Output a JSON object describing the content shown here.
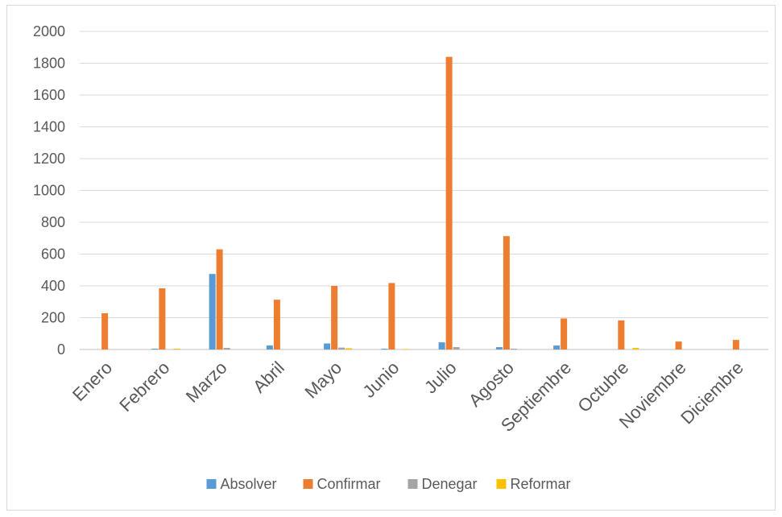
{
  "chart_data": {
    "type": "bar",
    "title": "",
    "xlabel": "",
    "ylabel": "",
    "ylim": [
      0,
      2000
    ],
    "yticks": [
      0,
      200,
      400,
      600,
      800,
      1000,
      1200,
      1400,
      1600,
      1800,
      2000
    ],
    "categories": [
      "Enero",
      "Febrero",
      "Marzo",
      "Abril",
      "Mayo",
      "Junio",
      "Julio",
      "Agosto",
      "Septiembre",
      "Octubre",
      "Noviembre",
      "Diciembre"
    ],
    "series": [
      {
        "name": "Absolver",
        "color": "#5b9bd5",
        "values": [
          0,
          5,
          475,
          25,
          38,
          5,
          45,
          15,
          25,
          0,
          0,
          0
        ]
      },
      {
        "name": "Confirmar",
        "color": "#ed7d31",
        "values": [
          228,
          385,
          630,
          313,
          400,
          418,
          1840,
          713,
          195,
          183,
          50,
          60
        ]
      },
      {
        "name": "Denegar",
        "color": "#a5a5a5",
        "values": [
          0,
          0,
          10,
          0,
          12,
          0,
          15,
          5,
          0,
          0,
          0,
          0
        ]
      },
      {
        "name": "Reformar",
        "color": "#ffc000",
        "values": [
          0,
          5,
          0,
          0,
          8,
          3,
          0,
          0,
          0,
          10,
          0,
          0
        ]
      }
    ],
    "grid": true,
    "legend_position": "bottom"
  }
}
